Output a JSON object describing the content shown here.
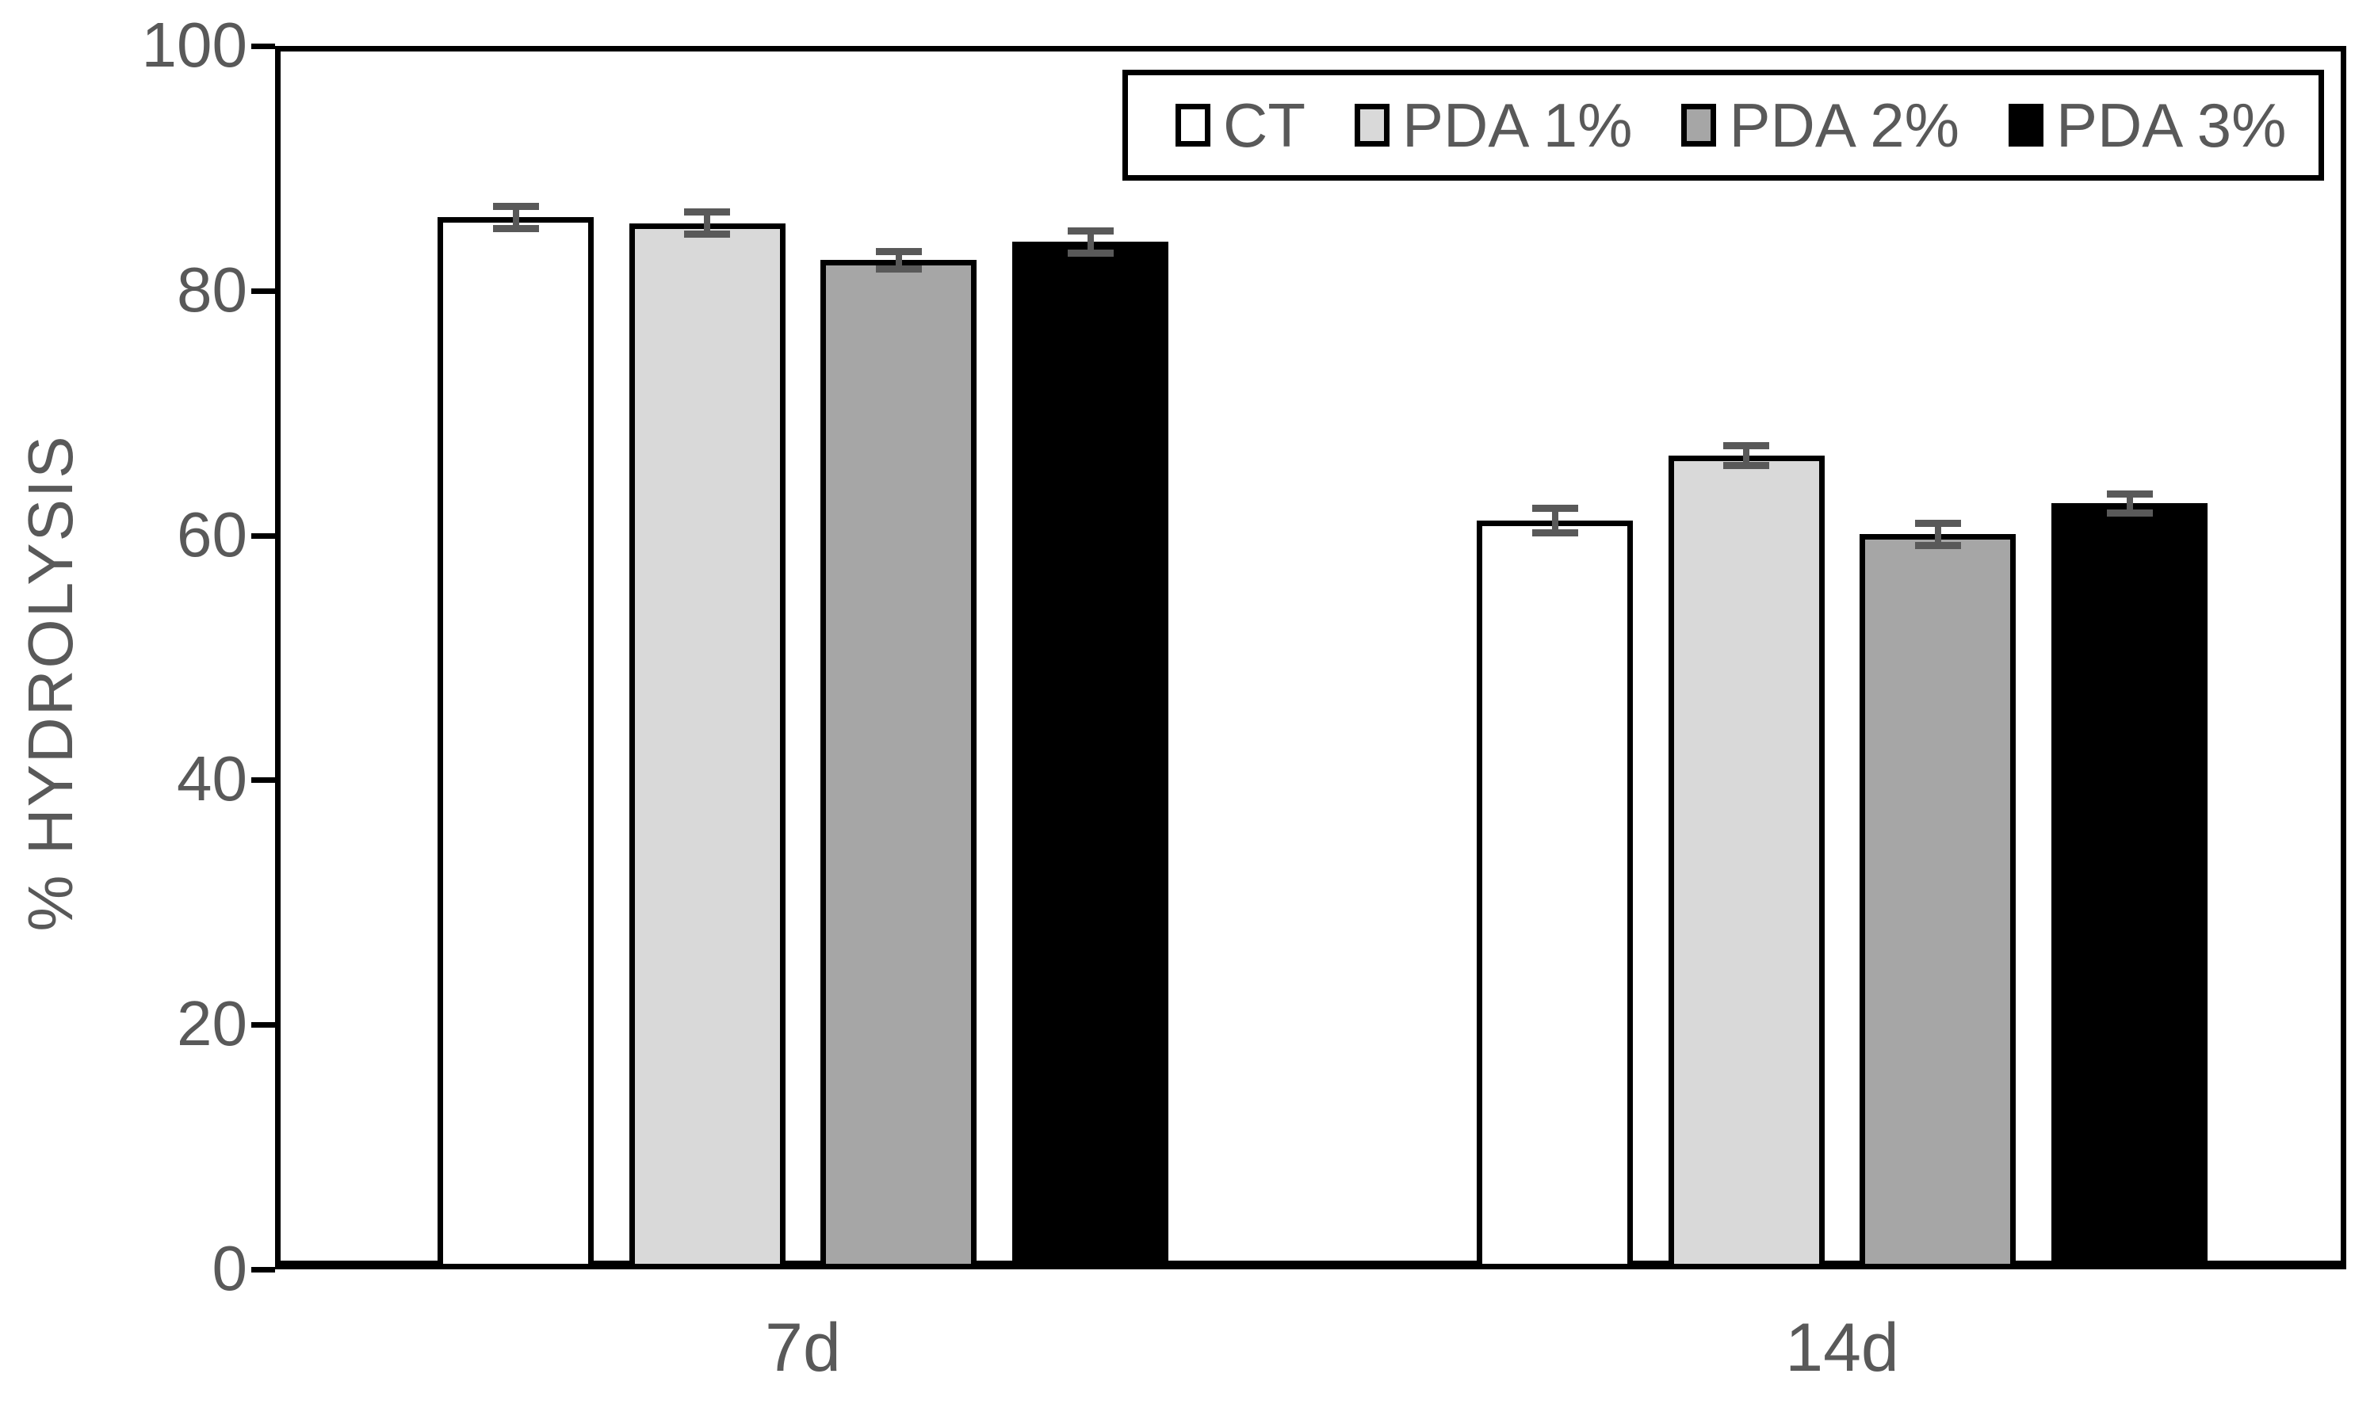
{
  "chart_data": {
    "type": "bar",
    "title": "",
    "xlabel": "",
    "ylabel": "% HYDROLYSIS",
    "ylim": [
      0,
      100
    ],
    "yticks": [
      0,
      20,
      40,
      60,
      80,
      100
    ],
    "ytick_labels": [
      "0",
      "20",
      "40",
      "60",
      "80",
      "100"
    ],
    "categories": [
      "7d",
      "14d"
    ],
    "series": [
      {
        "name": "CT",
        "fill": "#ffffff",
        "values": [
          86.0,
          61.2
        ],
        "errors": [
          1.2,
          1.3
        ]
      },
      {
        "name": "PDA 1%",
        "fill": "#d9d9d9",
        "values": [
          85.5,
          66.5
        ],
        "errors": [
          1.2,
          1.1
        ]
      },
      {
        "name": "PDA 2%",
        "fill": "#a6a6a6",
        "values": [
          82.5,
          60.1
        ],
        "errors": [
          1.0,
          1.2
        ]
      },
      {
        "name": "PDA 3%",
        "fill": "#000000",
        "values": [
          84.0,
          62.6
        ],
        "errors": [
          1.2,
          1.1
        ]
      }
    ],
    "legend_position": "top-right",
    "grid": false,
    "error_bars": true
  },
  "colors": {
    "text": "#595959",
    "axis": "#000000",
    "bar_border": "#000000",
    "error_bar": "#595959",
    "background": "#ffffff"
  }
}
